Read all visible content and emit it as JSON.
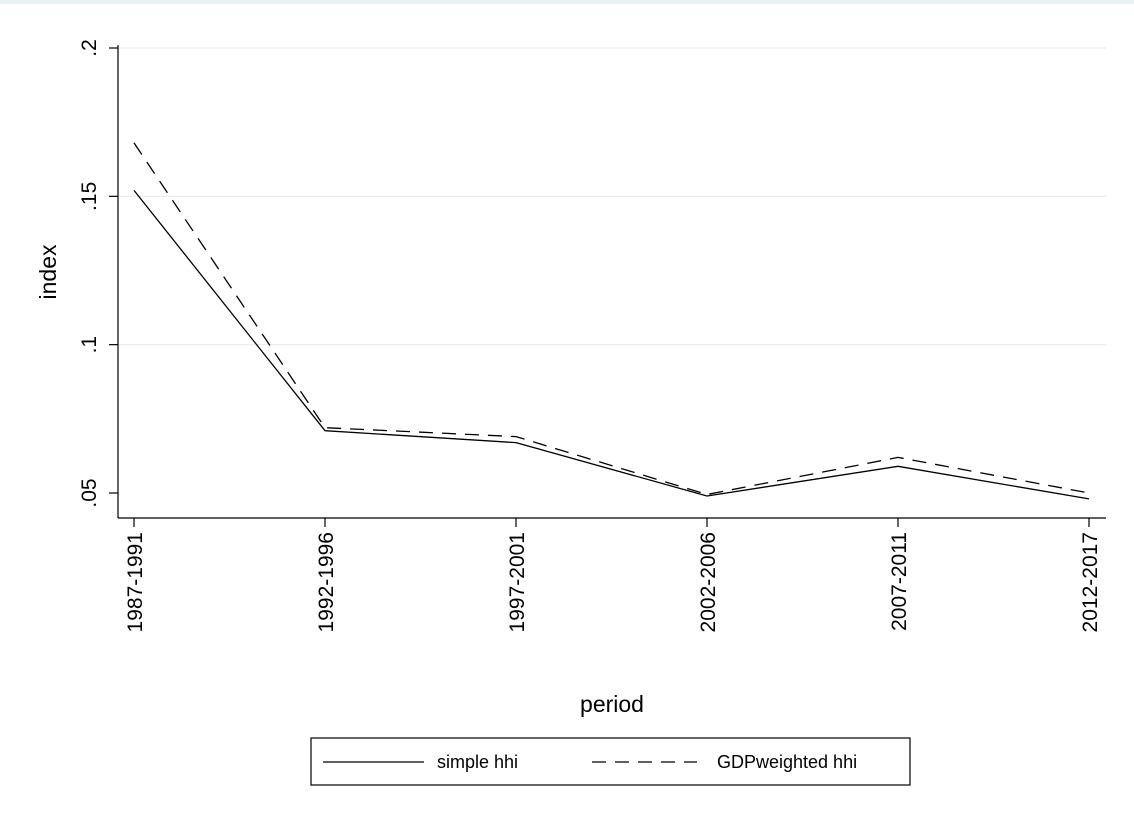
{
  "chart_data": {
    "type": "line",
    "xlabel": "period",
    "ylabel": "index",
    "categories": [
      "1987-1991",
      "1992-1996",
      "1997-2001",
      "2002-2006",
      "2007-2011",
      "2012-2017"
    ],
    "y_ticks": [
      ".05",
      ".1",
      ".15",
      ".2"
    ],
    "y_tick_values": [
      0.05,
      0.1,
      0.15,
      0.2
    ],
    "ylim": [
      0.05,
      0.2
    ],
    "grid": true,
    "legend_position": "bottom",
    "series": [
      {
        "name": "simple hhi",
        "line_style": "solid",
        "color": "#000000",
        "values": [
          0.152,
          0.071,
          0.067,
          0.049,
          0.059,
          0.048
        ]
      },
      {
        "name": "GDPweighted hhi",
        "line_style": "dashed",
        "color": "#000000",
        "values": [
          0.168,
          0.072,
          0.069,
          0.0495,
          0.062,
          0.05
        ]
      }
    ]
  }
}
